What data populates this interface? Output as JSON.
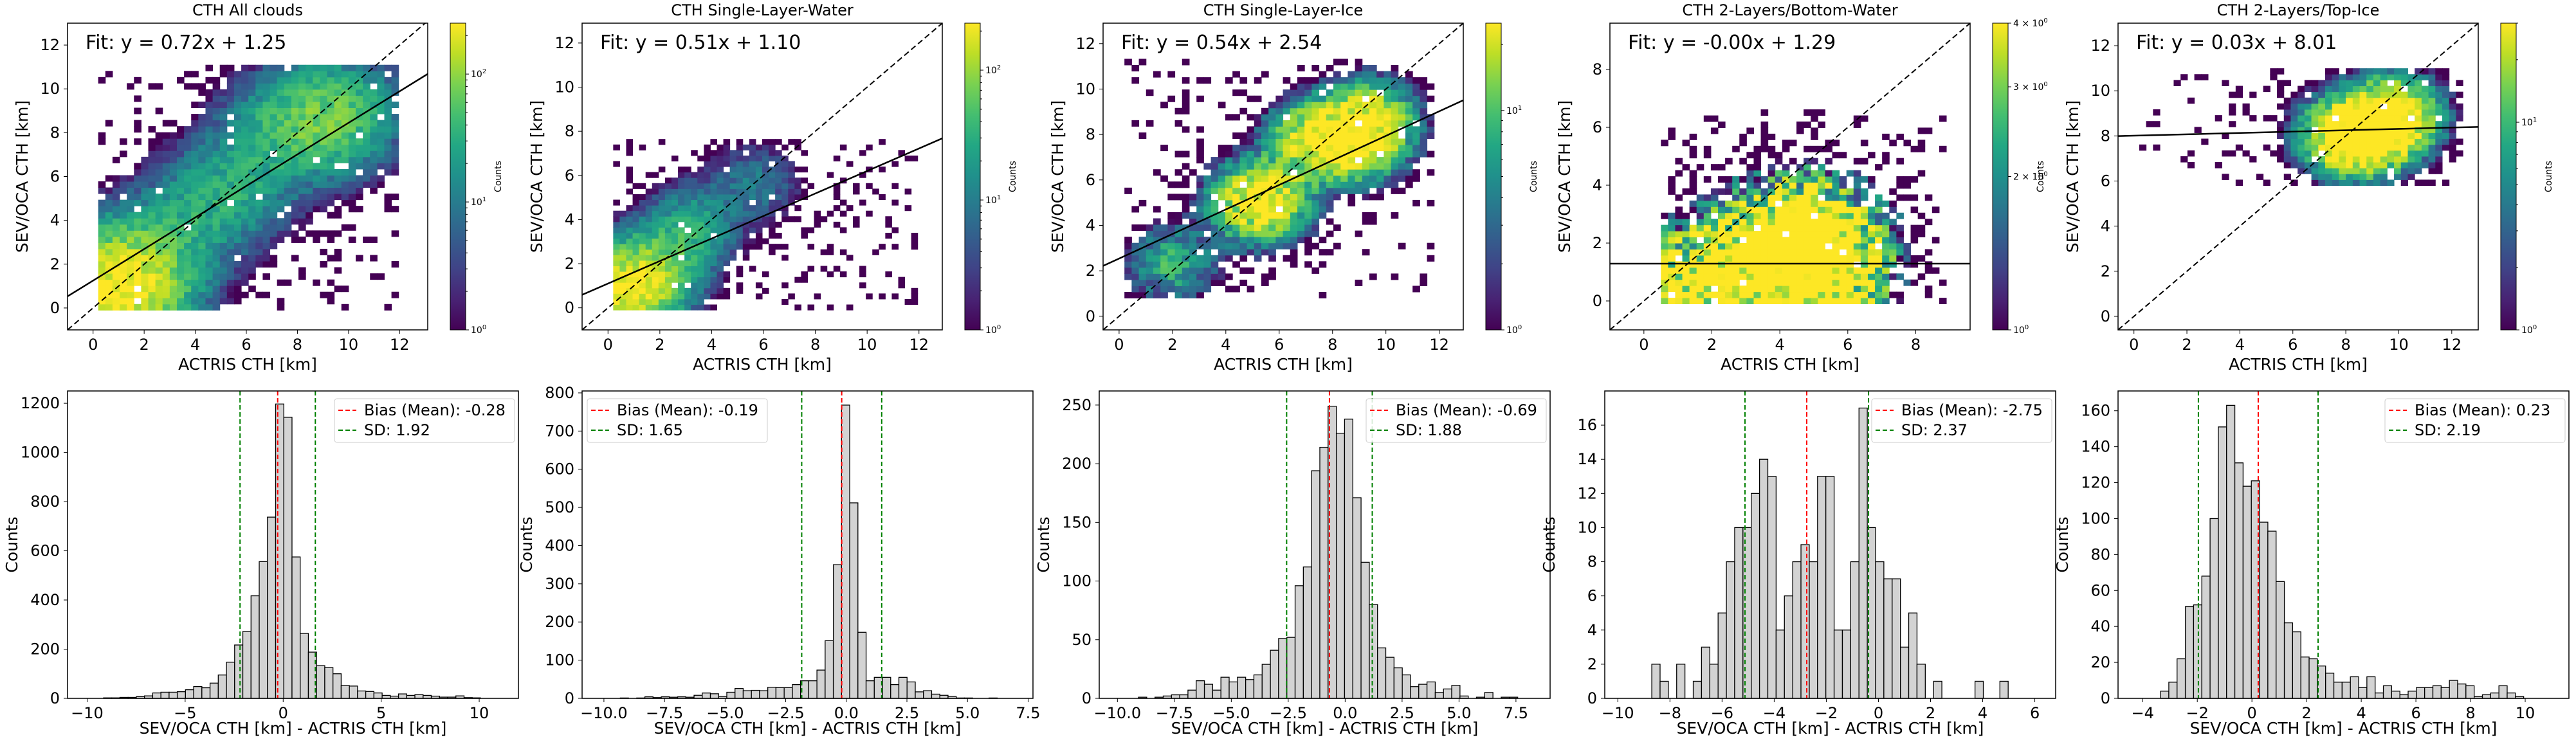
{
  "chart_data": [
    {
      "type": "heatmap",
      "title": "CTH All clouds",
      "xlabel": "ACTRIS CTH [km]",
      "ylabel": "SEV/OCA CTH [km]",
      "xlim": [
        -1,
        13.1
      ],
      "ylim": [
        -1,
        13.0
      ],
      "xticks": [
        0,
        2,
        4,
        6,
        8,
        10,
        12
      ],
      "yticks": [
        0,
        2,
        4,
        6,
        8,
        10,
        12
      ],
      "fit_text": "Fit: y = 0.72x + 1.25",
      "fit": {
        "slope": 0.72,
        "intercept": 1.25
      },
      "colorbar": {
        "label": "Counts",
        "scale": "log",
        "min": 1,
        "max": 250,
        "ticks": [
          "10^0",
          "10^1",
          "10^2"
        ],
        "tick_values": [
          1,
          10,
          100
        ]
      },
      "bin_size": 0.28,
      "density": {
        "centers": [
          [
            0.8,
            0.8,
            250
          ],
          [
            2.0,
            2.0,
            50
          ],
          [
            4.0,
            4.2,
            25
          ],
          [
            5.5,
            5.6,
            22
          ],
          [
            7.2,
            7.8,
            30
          ],
          [
            8.8,
            8.4,
            40
          ],
          [
            9.4,
            8.8,
            35
          ]
        ],
        "spread": 2.2,
        "extent": {
          "x": [
            0.2,
            11.8
          ],
          "y": [
            -0.1,
            11.0
          ]
        }
      }
    },
    {
      "type": "heatmap",
      "title": "CTH Single-Layer-Water",
      "xlabel": "ACTRIS CTH [km]",
      "ylabel": "SEV/OCA CTH [km]",
      "xlim": [
        -1,
        12.9
      ],
      "ylim": [
        -1,
        12.9
      ],
      "xticks": [
        0,
        2,
        4,
        6,
        8,
        10,
        12
      ],
      "yticks": [
        0,
        2,
        4,
        6,
        8,
        10,
        12
      ],
      "fit_text": "Fit: y = 0.51x + 1.10",
      "fit": {
        "slope": 0.51,
        "intercept": 1.1
      },
      "colorbar": {
        "label": "Counts",
        "scale": "log",
        "min": 1,
        "max": 230,
        "ticks": [
          "10^0",
          "10^1",
          "10^2"
        ],
        "tick_values": [
          1,
          10,
          100
        ]
      },
      "bin_size": 0.25,
      "density": {
        "centers": [
          [
            0.8,
            0.8,
            230
          ],
          [
            1.6,
            1.8,
            40
          ],
          [
            3.3,
            3.8,
            20
          ],
          [
            5.5,
            5.5,
            10
          ],
          [
            2.5,
            2.6,
            25
          ]
        ],
        "spread": 1.6,
        "extent": {
          "x": [
            0.2,
            11.9
          ],
          "y": [
            -0.1,
            7.5
          ]
        }
      }
    },
    {
      "type": "heatmap",
      "title": "CTH Single-Layer-Ice",
      "xlabel": "ACTRIS CTH [km]",
      "ylabel": "SEV/OCA CTH [km]",
      "xlim": [
        -0.6,
        12.9
      ],
      "ylim": [
        -0.6,
        12.9
      ],
      "xticks": [
        0,
        2,
        4,
        6,
        8,
        10,
        12
      ],
      "yticks": [
        0,
        2,
        4,
        6,
        8,
        10,
        12
      ],
      "fit_text": "Fit: y = 0.54x + 2.54",
      "fit": {
        "slope": 0.54,
        "intercept": 2.54
      },
      "colorbar": {
        "label": "Counts",
        "scale": "log",
        "min": 1,
        "max": 25,
        "ticks": [
          "10^0",
          "10^1"
        ],
        "tick_values": [
          1,
          10
        ]
      },
      "bin_size": 0.27,
      "density": {
        "centers": [
          [
            7.2,
            7.6,
            25
          ],
          [
            8.8,
            7.6,
            22
          ],
          [
            9.2,
            8.5,
            20
          ],
          [
            5.6,
            5.0,
            12
          ],
          [
            4.9,
            4.9,
            20
          ],
          [
            1.9,
            2.2,
            8
          ]
        ],
        "spread": 1.7,
        "extent": {
          "x": [
            0.2,
            11.8
          ],
          "y": [
            0.8,
            11.2
          ]
        }
      }
    },
    {
      "type": "heatmap",
      "title": "CTH 2-Layers/Bottom-Water",
      "xlabel": "ACTRIS CTH [km]",
      "ylabel": "SEV/OCA CTH [km]",
      "xlim": [
        -1,
        9.6
      ],
      "ylim": [
        -1,
        9.6
      ],
      "xticks": [
        0,
        2,
        4,
        6,
        8
      ],
      "yticks": [
        0,
        2,
        4,
        6,
        8
      ],
      "fit_text": "Fit: y = -0.00x + 1.29",
      "fit": {
        "slope": -0.0,
        "intercept": 1.29
      },
      "colorbar": {
        "label": "Counts",
        "scale": "log",
        "min": 1,
        "max": 4,
        "ticks": [
          "2 × 10^0",
          "3 × 10^0",
          "4 × 10^0"
        ],
        "tick_values": [
          2,
          3,
          4
        ],
        "bottom_tick": "10^0"
      },
      "bin_size": 0.21,
      "density": {
        "centers": [
          [
            0.8,
            0.1,
            4
          ],
          [
            4.6,
            2.3,
            4
          ],
          [
            5.1,
            0.8,
            4
          ],
          [
            3.0,
            1.2,
            2
          ]
        ],
        "spread": 2.6,
        "extent": {
          "x": [
            0.5,
            8.8
          ],
          "y": [
            -0.1,
            6.5
          ]
        }
      }
    },
    {
      "type": "heatmap",
      "title": "CTH 2-Layers/Top-Ice",
      "xlabel": "ACTRIS CTH [km]",
      "ylabel": "SEV/OCA CTH [km]",
      "xlim": [
        -0.6,
        13.0
      ],
      "ylim": [
        -0.6,
        13.0
      ],
      "xticks": [
        0,
        2,
        4,
        6,
        8,
        10,
        12
      ],
      "yticks": [
        0,
        2,
        4,
        6,
        8,
        10,
        12
      ],
      "fit_text": "Fit: y = 0.03x + 8.01",
      "fit": {
        "slope": 0.03,
        "intercept": 8.01
      },
      "colorbar": {
        "label": "Counts",
        "scale": "log",
        "min": 1,
        "max": 30,
        "ticks": [
          "10^0",
          "10^1"
        ],
        "tick_values": [
          1,
          10
        ]
      },
      "bin_size": 0.26,
      "density": {
        "centers": [
          [
            8.8,
            8.0,
            30
          ],
          [
            9.8,
            8.8,
            28
          ],
          [
            9.2,
            8.5,
            22
          ],
          [
            7.6,
            8.0,
            18
          ],
          [
            8.2,
            7.6,
            18
          ]
        ],
        "spread": 1.6,
        "extent": {
          "x": [
            0.2,
            12.2
          ],
          "y": [
            5.8,
            10.8
          ]
        }
      }
    },
    {
      "type": "bar",
      "subtype": "histogram",
      "xlabel": "SEV/OCA CTH [km] - ACTRIS CTH [km]",
      "ylabel": "Counts",
      "xlim": [
        -11.0,
        12.0
      ],
      "ylim": [
        0,
        1250
      ],
      "xticks": [
        -10,
        -5,
        0,
        5,
        10
      ],
      "xtick_labels": [
        "−10",
        "−5",
        "0",
        "5",
        "10"
      ],
      "yticks": [
        0,
        200,
        400,
        600,
        800,
        1000,
        1200
      ],
      "bin_width": 0.418,
      "bin_start": -10.0,
      "values": [
        0,
        0,
        2,
        2,
        4,
        4,
        7,
        10,
        22,
        25,
        25,
        27,
        35,
        48,
        43,
        62,
        95,
        147,
        217,
        272,
        417,
        556,
        737,
        1197,
        1143,
        575,
        264,
        188,
        133,
        125,
        100,
        52,
        50,
        30,
        28,
        22,
        12,
        9,
        18,
        12,
        15,
        12,
        9,
        5,
        5,
        10,
        3,
        2,
        0,
        0
      ],
      "bias": -0.28,
      "sd": 1.92,
      "legend": {
        "bias_label": "Bias (Mean): -0.28",
        "sd_label": "SD: 1.92",
        "placement": "top-right"
      },
      "colors": {
        "bar": "#d3d3d3",
        "bias": "#ff0000",
        "sd": "#008000"
      }
    },
    {
      "type": "bar",
      "subtype": "histogram",
      "xlabel": "SEV/OCA CTH [km] - ACTRIS CTH [km]",
      "ylabel": "Counts",
      "xlim": [
        -10.9,
        7.7
      ],
      "ylim": [
        0,
        805
      ],
      "xticks": [
        -10,
        -7.5,
        -5,
        -2.5,
        0,
        2.5,
        5,
        7.5
      ],
      "xtick_labels": [
        "−10.0",
        "−7.5",
        "−5.0",
        "−2.5",
        "0.0",
        "2.5",
        "5.0",
        "7.5"
      ],
      "yticks": [
        0,
        100,
        200,
        300,
        400,
        500,
        600,
        700,
        800
      ],
      "bin_width": 0.338,
      "bin_start": -10.0,
      "values": [
        0,
        0,
        1,
        0,
        1,
        4,
        2,
        4,
        3,
        4,
        3,
        8,
        14,
        12,
        5,
        16,
        26,
        20,
        21,
        20,
        29,
        28,
        28,
        36,
        46,
        46,
        74,
        151,
        350,
        768,
        512,
        173,
        46,
        55,
        55,
        36,
        55,
        43,
        17,
        20,
        11,
        8,
        5,
        1,
        1,
        0,
        0,
        1,
        0,
        0
      ],
      "bias": -0.19,
      "sd": 1.65,
      "legend": {
        "bias_label": "Bias (Mean): -0.19",
        "sd_label": "SD: 1.65",
        "placement": "top-left"
      },
      "colors": {
        "bar": "#d3d3d3",
        "bias": "#ff0000",
        "sd": "#008000"
      }
    },
    {
      "type": "bar",
      "subtype": "histogram",
      "xlabel": "SEV/OCA CTH [km] - ACTRIS CTH [km]",
      "ylabel": "Counts",
      "xlim": [
        -10.8,
        9.0
      ],
      "ylim": [
        0,
        262
      ],
      "xticks": [
        -10,
        -7.5,
        -5,
        -2.5,
        0,
        2.5,
        5,
        7.5
      ],
      "xtick_labels": [
        "−10.0",
        "−7.5",
        "−5.0",
        "−2.5",
        "0.0",
        "2.5",
        "5.0",
        "7.5"
      ],
      "yticks": [
        0,
        50,
        100,
        150,
        200,
        250
      ],
      "bin_width": 0.362,
      "bin_start": -9.8,
      "values": [
        0,
        0,
        1,
        0,
        1,
        2,
        3,
        3,
        7,
        15,
        12,
        7,
        18,
        14,
        18,
        16,
        20,
        29,
        41,
        51,
        52,
        96,
        112,
        194,
        214,
        249,
        226,
        238,
        171,
        116,
        80,
        43,
        35,
        26,
        20,
        10,
        12,
        14,
        5,
        8,
        11,
        2,
        0,
        1,
        5,
        0,
        1,
        1,
        0,
        0
      ],
      "bias": -0.69,
      "sd": 1.88,
      "legend": {
        "bias_label": "Bias (Mean): -0.69",
        "sd_label": "SD: 1.88",
        "placement": "top-right"
      },
      "colors": {
        "bar": "#d3d3d3",
        "bias": "#ff0000",
        "sd": "#008000"
      }
    },
    {
      "type": "bar",
      "subtype": "histogram",
      "xlabel": "SEV/OCA CTH [km] - ACTRIS CTH [km]",
      "ylabel": "Counts",
      "xlim": [
        -10.5,
        6.8
      ],
      "ylim": [
        0,
        18
      ],
      "xticks": [
        -10,
        -8,
        -6,
        -4,
        -2,
        0,
        2,
        4,
        6
      ],
      "xtick_labels": [
        "−10",
        "−8",
        "−6",
        "−4",
        "−2",
        "0",
        "2",
        "4",
        "6"
      ],
      "yticks": [
        0,
        2,
        4,
        6,
        8,
        10,
        12,
        14,
        16
      ],
      "bin_width": 0.318,
      "bin_start": -9.65,
      "values": [
        0,
        0,
        0,
        2,
        1,
        0,
        2,
        0,
        1,
        3,
        2,
        5,
        8,
        10,
        10,
        12,
        14,
        13,
        4,
        6,
        8,
        9,
        8,
        13,
        13,
        4,
        4,
        8,
        17,
        10,
        8,
        7,
        7,
        3,
        5,
        2,
        0,
        1,
        0,
        0,
        0,
        0,
        1,
        0,
        0,
        1,
        0,
        0,
        0,
        0
      ],
      "bias": -2.75,
      "sd": 2.37,
      "legend": {
        "bias_label": "Bias (Mean): -2.75",
        "sd_label": "SD: 2.37",
        "placement": "top-right"
      },
      "colors": {
        "bar": "#d3d3d3",
        "bias": "#ff0000",
        "sd": "#008000"
      }
    },
    {
      "type": "bar",
      "subtype": "histogram",
      "xlabel": "SEV/OCA CTH [km] - ACTRIS CTH [km]",
      "ylabel": "Counts",
      "xlim": [
        -4.9,
        11.6
      ],
      "ylim": [
        0,
        171
      ],
      "xticks": [
        -4,
        -2,
        0,
        2,
        4,
        6,
        8,
        10
      ],
      "xtick_labels": [
        "−4",
        "−2",
        "0",
        "2",
        "4",
        "6",
        "8",
        "10"
      ],
      "yticks": [
        0,
        20,
        40,
        60,
        80,
        100,
        120,
        140,
        160
      ],
      "bin_width": 0.302,
      "bin_start": -4.25,
      "values": [
        0,
        0,
        0,
        4,
        9,
        22,
        51,
        52,
        68,
        100,
        151,
        163,
        131,
        118,
        121,
        98,
        93,
        65,
        42,
        37,
        23,
        22,
        18,
        14,
        9,
        9,
        12,
        6,
        12,
        3,
        7,
        4,
        2,
        4,
        6,
        6,
        7,
        6,
        10,
        8,
        7,
        1,
        2,
        3,
        7,
        3,
        1,
        0,
        0,
        0
      ],
      "bias": 0.23,
      "sd": 2.19,
      "legend": {
        "bias_label": "Bias (Mean): 0.23",
        "sd_label": "SD: 2.19",
        "placement": "top-right"
      },
      "colors": {
        "bar": "#d3d3d3",
        "bias": "#ff0000",
        "sd": "#008000"
      }
    }
  ]
}
